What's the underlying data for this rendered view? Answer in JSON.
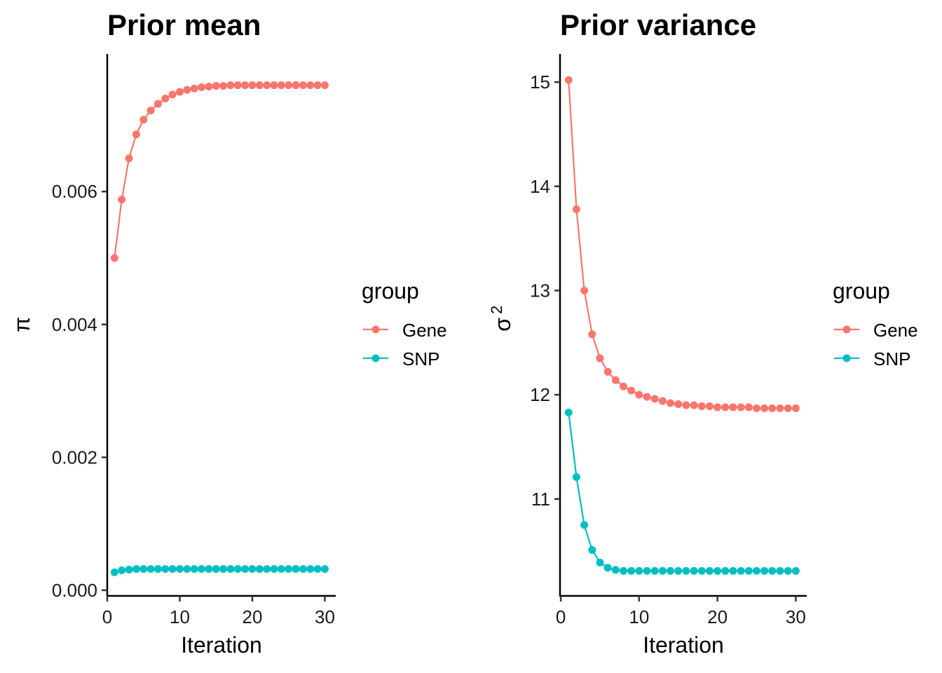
{
  "chart_data": [
    {
      "type": "line",
      "title": "Prior mean",
      "xlabel": "Iteration",
      "ylabel": "π",
      "xlim": [
        0,
        31.5
      ],
      "ylim": [
        -8.5e-05,
        0.00807
      ],
      "xticks": [
        0,
        10,
        20,
        30
      ],
      "xtick_labels": [
        "0",
        "10",
        "20",
        "30"
      ],
      "yticks": [
        0,
        0.002,
        0.004,
        0.006
      ],
      "ytick_labels": [
        "0.000",
        "0.002",
        "0.004",
        "0.006"
      ],
      "grid": false,
      "legend": {
        "title": "group",
        "position": "right",
        "entries": [
          "Gene",
          "SNP"
        ]
      },
      "x": [
        1,
        2,
        3,
        4,
        5,
        6,
        7,
        8,
        9,
        10,
        11,
        12,
        13,
        14,
        15,
        16,
        17,
        18,
        19,
        20,
        21,
        22,
        23,
        24,
        25,
        26,
        27,
        28,
        29,
        30
      ],
      "series": [
        {
          "name": "Gene",
          "color": "#F8766D",
          "values": [
            0.005,
            0.00588,
            0.0065,
            0.00686,
            0.00708,
            0.00722,
            0.00732,
            0.0074,
            0.00746,
            0.0075,
            0.00753,
            0.00755,
            0.00757,
            0.00758,
            0.00759,
            0.00759,
            0.0076,
            0.0076,
            0.0076,
            0.0076,
            0.0076,
            0.0076,
            0.0076,
            0.0076,
            0.0076,
            0.0076,
            0.0076,
            0.0076,
            0.0076,
            0.0076
          ]
        },
        {
          "name": "SNP",
          "color": "#00BFC4",
          "values": [
            0.00027,
            0.0003,
            0.00031,
            0.00032,
            0.00032,
            0.00032,
            0.00032,
            0.00032,
            0.00032,
            0.00032,
            0.00032,
            0.00032,
            0.00032,
            0.00032,
            0.00032,
            0.00032,
            0.00032,
            0.00032,
            0.00032,
            0.00032,
            0.00032,
            0.00032,
            0.00032,
            0.00032,
            0.00032,
            0.00032,
            0.00032,
            0.00032,
            0.00032,
            0.00032
          ]
        }
      ]
    },
    {
      "type": "line",
      "title": "Prior variance",
      "xlabel": "Iteration",
      "ylabel": "σ2",
      "xlim": [
        -0.1,
        31.4
      ],
      "ylim": [
        10.07,
        15.27
      ],
      "xticks": [
        0,
        10,
        20,
        30
      ],
      "xtick_labels": [
        "0",
        "10",
        "20",
        "30"
      ],
      "yticks": [
        11,
        12,
        13,
        14,
        15
      ],
      "ytick_labels": [
        "11",
        "12",
        "13",
        "14",
        "15"
      ],
      "grid": false,
      "legend": {
        "title": "group",
        "position": "right",
        "entries": [
          "Gene",
          "SNP"
        ]
      },
      "x": [
        1,
        2,
        3,
        4,
        5,
        6,
        7,
        8,
        9,
        10,
        11,
        12,
        13,
        14,
        15,
        16,
        17,
        18,
        19,
        20,
        21,
        22,
        23,
        24,
        25,
        26,
        27,
        28,
        29,
        30
      ],
      "series": [
        {
          "name": "Gene",
          "color": "#F8766D",
          "values": [
            15.02,
            13.78,
            13.0,
            12.58,
            12.35,
            12.22,
            12.14,
            12.08,
            12.04,
            12.0,
            11.98,
            11.96,
            11.94,
            11.92,
            11.91,
            11.9,
            11.9,
            11.89,
            11.89,
            11.88,
            11.88,
            11.88,
            11.88,
            11.88,
            11.87,
            11.87,
            11.87,
            11.87,
            11.87,
            11.87
          ]
        },
        {
          "name": "SNP",
          "color": "#00BFC4",
          "values": [
            11.83,
            11.21,
            10.75,
            10.51,
            10.39,
            10.34,
            10.32,
            10.31,
            10.31,
            10.31,
            10.31,
            10.31,
            10.31,
            10.31,
            10.31,
            10.31,
            10.31,
            10.31,
            10.31,
            10.31,
            10.31,
            10.31,
            10.31,
            10.31,
            10.31,
            10.31,
            10.31,
            10.31,
            10.31,
            10.31
          ]
        }
      ]
    }
  ]
}
